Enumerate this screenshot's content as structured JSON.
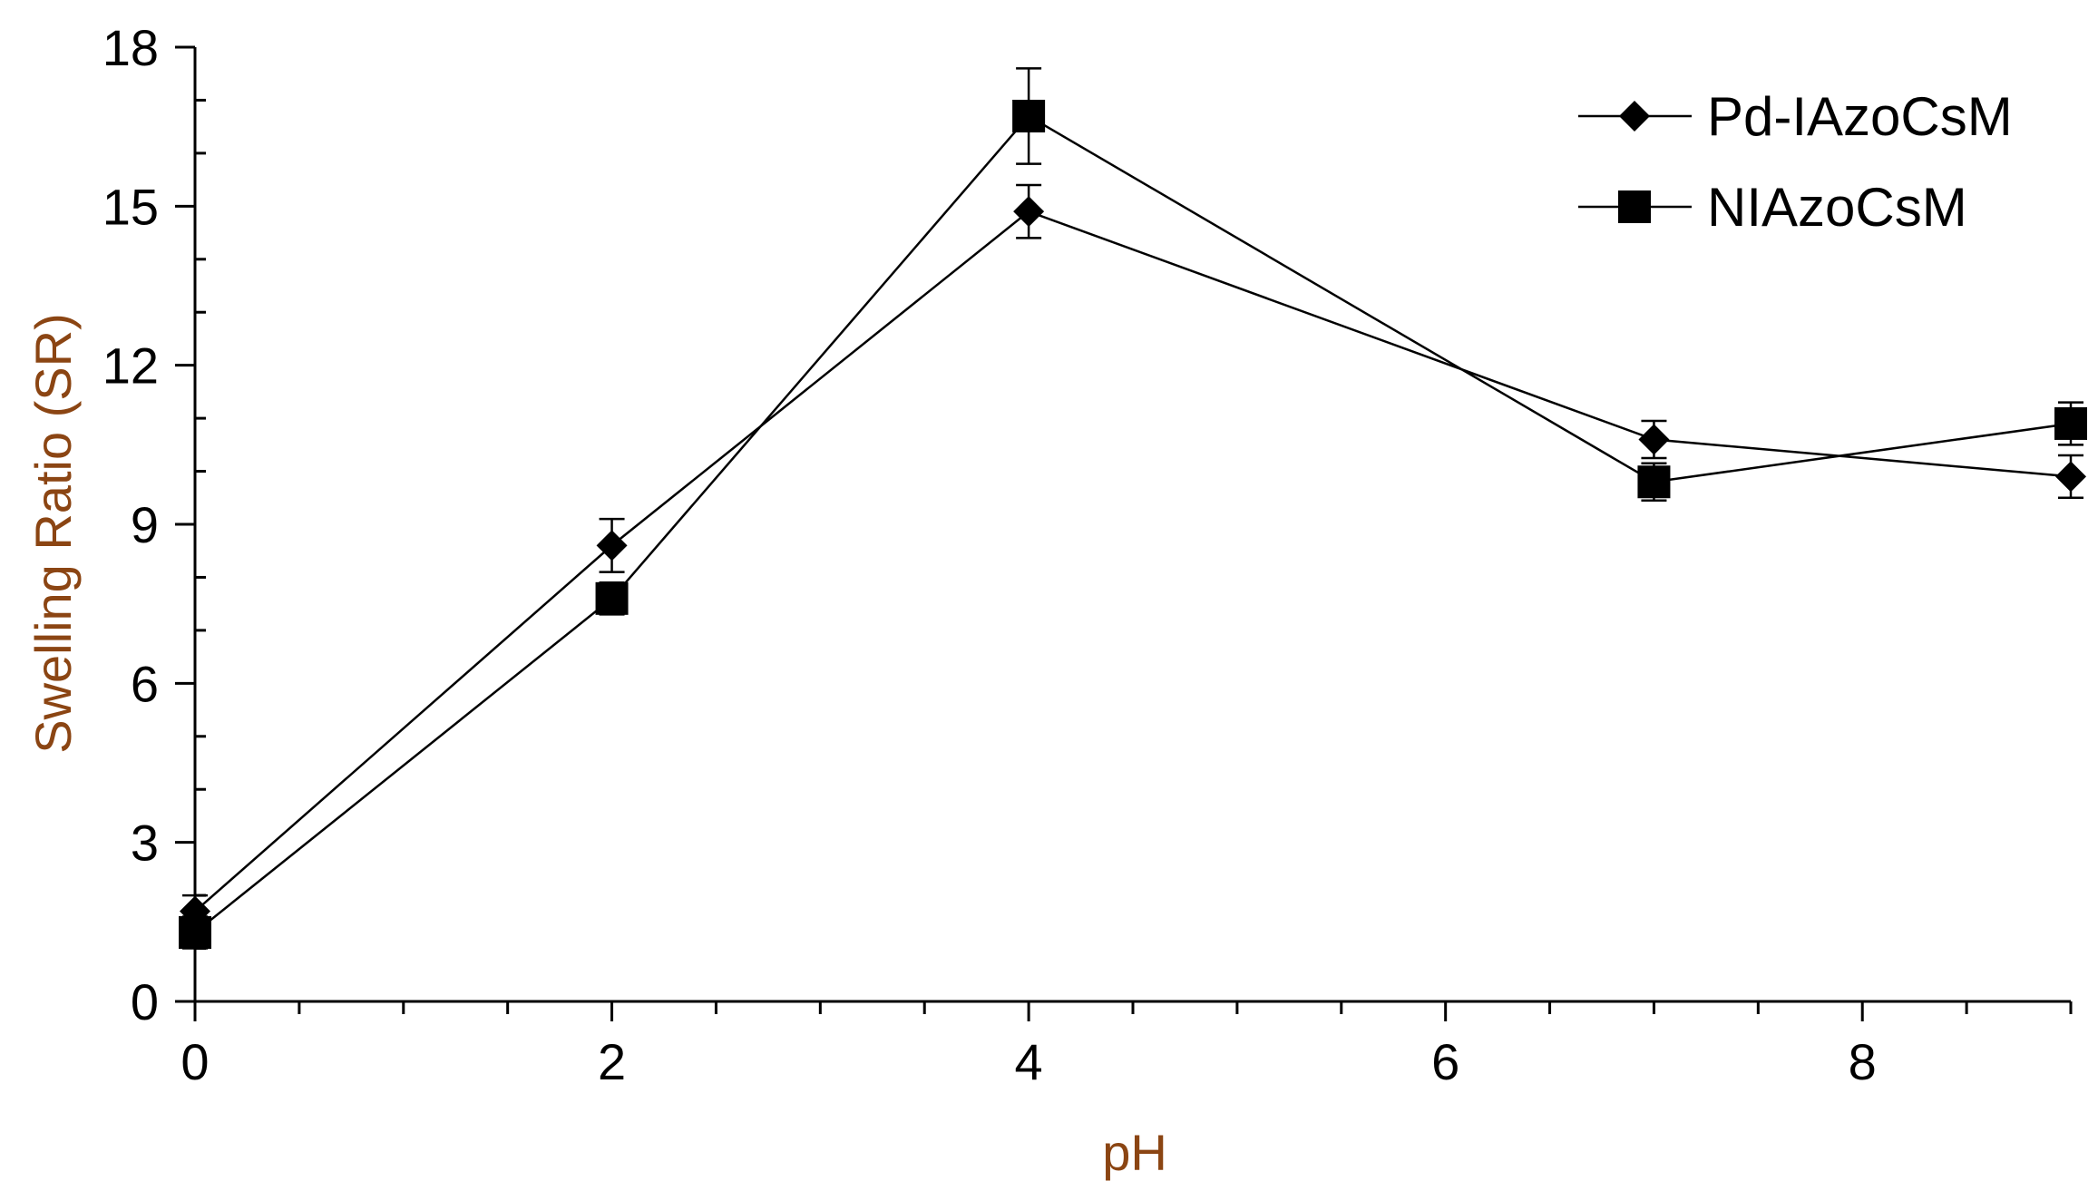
{
  "chart_data": {
    "type": "line",
    "title": "",
    "xlabel": "pH",
    "ylabel": "Swelling Ratio (SR)",
    "xlim": [
      0,
      9
    ],
    "ylim": [
      0,
      18
    ],
    "x_ticks": [
      0,
      2,
      4,
      6,
      8
    ],
    "x_tick_labels": [
      "0",
      "2",
      "4",
      "6",
      "8"
    ],
    "x_minor_step": 0.5,
    "y_ticks": [
      0,
      3,
      6,
      9,
      12,
      15,
      18
    ],
    "y_tick_labels": [
      "0",
      "3",
      "6",
      "9",
      "12",
      "15",
      "18"
    ],
    "y_minor_step": 1,
    "grid": false,
    "legend_position": "top-right",
    "series": [
      {
        "name": "Pd-IAzoCsM",
        "marker": "diamond",
        "x": [
          0,
          2,
          4,
          7,
          9
        ],
        "values": [
          1.7,
          8.6,
          14.9,
          10.6,
          9.9
        ],
        "errors": [
          0.3,
          0.5,
          0.5,
          0.35,
          0.4
        ]
      },
      {
        "name": "NIAzoCsM",
        "marker": "square",
        "x": [
          0,
          2,
          4,
          7,
          9
        ],
        "values": [
          1.3,
          7.6,
          16.7,
          9.8,
          10.9
        ],
        "errors": [
          0.3,
          0.3,
          0.9,
          0.35,
          0.4
        ]
      }
    ],
    "colors": {
      "axis": "#000000",
      "series_line": "#000000",
      "axis_title": "#8B4513",
      "tick_text": "#000000"
    }
  }
}
